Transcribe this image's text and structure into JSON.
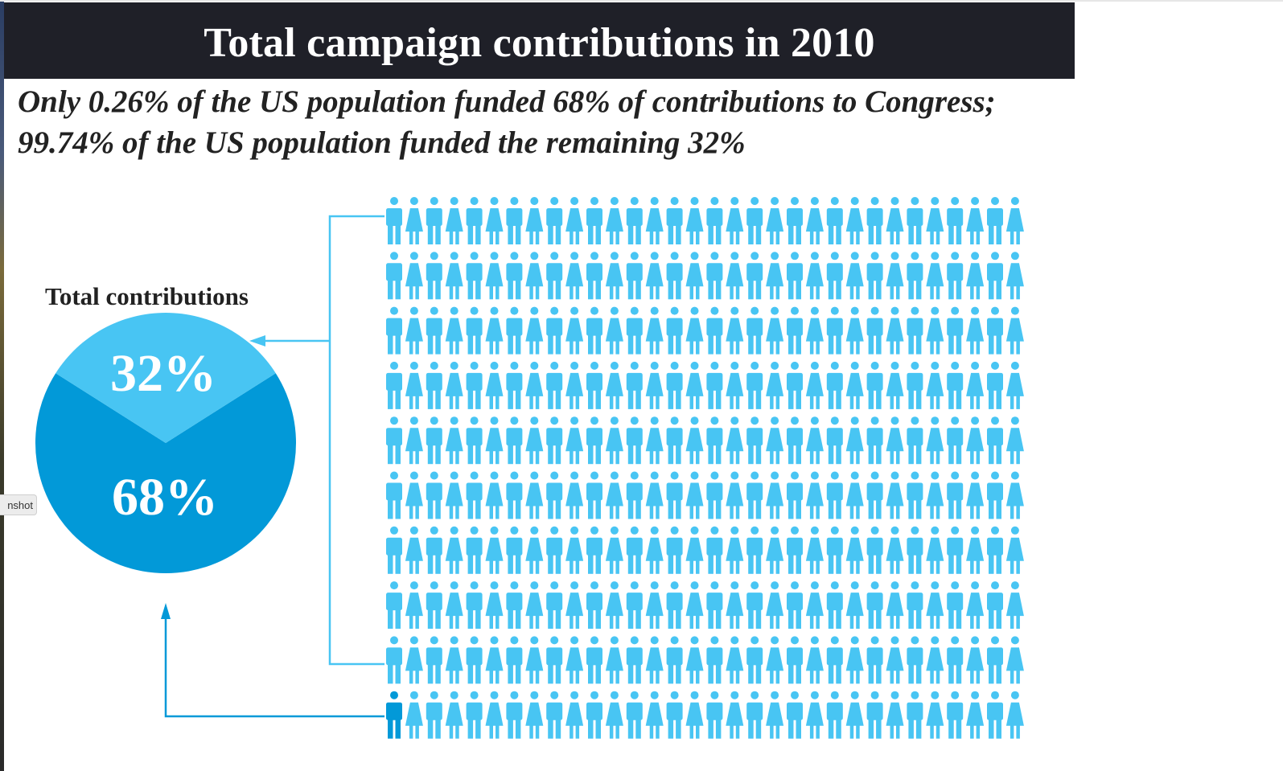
{
  "title": "Total campaign contributions in 2010",
  "subtitle_line1": "Only 0.26% of the US population funded 68% of contributions to Congress;",
  "subtitle_line2": "99.74% of the US population funded the remaining 32%",
  "screenshot_chip_label": "nshot",
  "colors": {
    "title_bg": "#1f2028",
    "light_blue": "#48c5f3",
    "dark_blue": "#0299d8",
    "text": "#222222"
  },
  "chart_data": [
    {
      "type": "pie",
      "title": "Total contributions",
      "slices": [
        {
          "label": "32%",
          "value": 32,
          "color": "#48c5f3"
        },
        {
          "label": "68%",
          "value": 68,
          "color": "#0299d8"
        }
      ]
    },
    {
      "type": "icon_array",
      "rows": 10,
      "columns": 32,
      "icon_pattern": [
        "male",
        "female"
      ],
      "highlighted": [
        {
          "row": 10,
          "column": 1,
          "color": "#0299d8"
        }
      ],
      "base_color": "#48c5f3"
    }
  ]
}
